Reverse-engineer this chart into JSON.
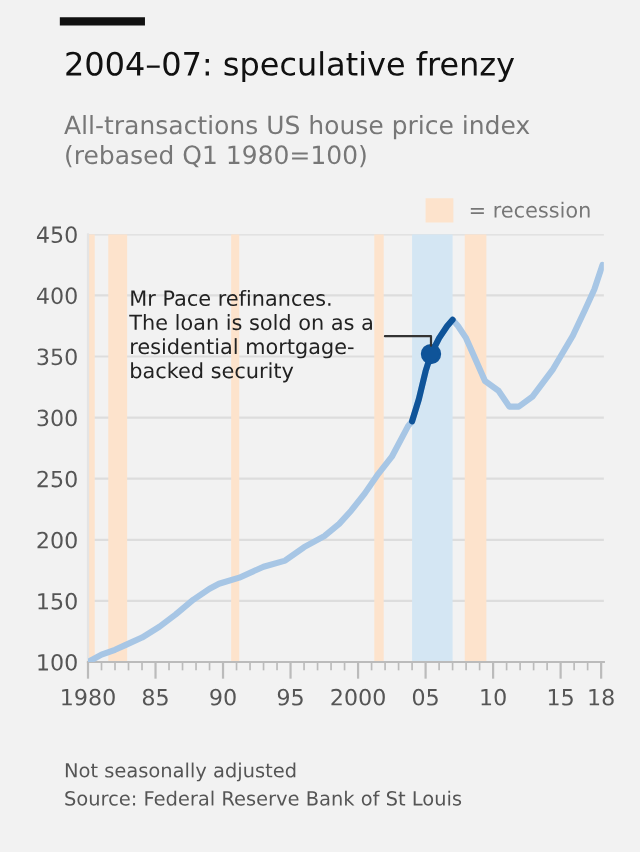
{
  "chart_data": {
    "type": "line",
    "title": "2004–07: speculative frenzy",
    "subtitle": "All-transactions US house price index\n(rebased Q1 1980=100)",
    "series": [
      {
        "color": "#a7c6e5",
        "x": [
          1980,
          1981,
          1982,
          1982.8,
          1984,
          1985.3,
          1986.5,
          1987.8,
          1989,
          1989.7,
          1991.2,
          1993,
          1994.6,
          1996,
          1997.5,
          1998.6,
          1999.5,
          2000.5,
          2001.5,
          2002.5,
          2003.7,
          2004,
          2004.5,
          2005,
          2005.4,
          2006,
          2006.6,
          2007,
          2007.4,
          2008,
          2008.6,
          2009.4,
          2010.4,
          2011.2,
          2011.9,
          2012.9,
          2014.4,
          2015.9,
          2016.8,
          2017.5,
          2018.1
        ],
        "values": [
          100,
          106,
          110,
          114,
          120,
          129,
          139,
          151,
          160,
          164,
          169,
          178,
          183,
          194,
          203,
          213,
          224,
          238,
          254,
          268,
          293,
          297,
          315,
          338,
          352,
          365,
          375,
          380,
          375,
          365,
          350,
          330,
          322,
          309,
          309,
          317,
          339,
          367,
          388,
          405,
          425
        ]
      },
      {
        "color": "#0f5499",
        "x": [
          2004,
          2004.5,
          2005,
          2005.4,
          2006,
          2006.6,
          2007
        ],
        "values": [
          297,
          315,
          338,
          352,
          365,
          375,
          380
        ]
      },
      {
        "type": "scatter",
        "color": "#0f5499",
        "x": [
          2005.4
        ],
        "values": [
          352
        ]
      }
    ],
    "xlim": [
      1980,
      2018.2
    ],
    "ylim": [
      100,
      450
    ],
    "xticks": [
      1980,
      {
        "value": 1985,
        "label": "85"
      },
      {
        "value": 1990,
        "label": "90"
      },
      {
        "value": 1995,
        "label": "95"
      },
      2000,
      {
        "value": 2005,
        "label": "05"
      },
      {
        "value": 2010,
        "label": "10"
      },
      {
        "value": 2015,
        "label": "15"
      },
      {
        "value": 2018,
        "label": "18"
      }
    ],
    "yticks": [
      100,
      150,
      200,
      250,
      300,
      350,
      400,
      450
    ],
    "grid": "y",
    "legend": "top right",
    "bands": [
      {
        "axis": "x",
        "from": 1980,
        "to": 1980.5,
        "label": "= recession",
        "color": "#fde3cc"
      },
      {
        "axis": "x",
        "from": 1981.5,
        "to": 1982.9,
        "color": "#fde3cc"
      },
      {
        "axis": "x",
        "from": 1990.6,
        "to": 1991.2,
        "color": "#fde3cc"
      },
      {
        "axis": "x",
        "from": 2001.2,
        "to": 2001.9,
        "color": "#fde3cc"
      },
      {
        "axis": "x",
        "from": 2007.9,
        "to": 2009.5,
        "color": "#fde3cc"
      },
      {
        "axis": "x",
        "from": 2004,
        "to": 2007,
        "color": "#d4e6f3"
      }
    ],
    "annotations": [
      {
        "text": "Mr Pace refinances.\nThe loan is sold on as a\nresidential mortgage-\nbacked security",
        "x": 2005.4,
        "y": 352
      },
      "Not seasonally adjusted",
      "Source: Federal Reserve Bank of St Louis"
    ]
  }
}
